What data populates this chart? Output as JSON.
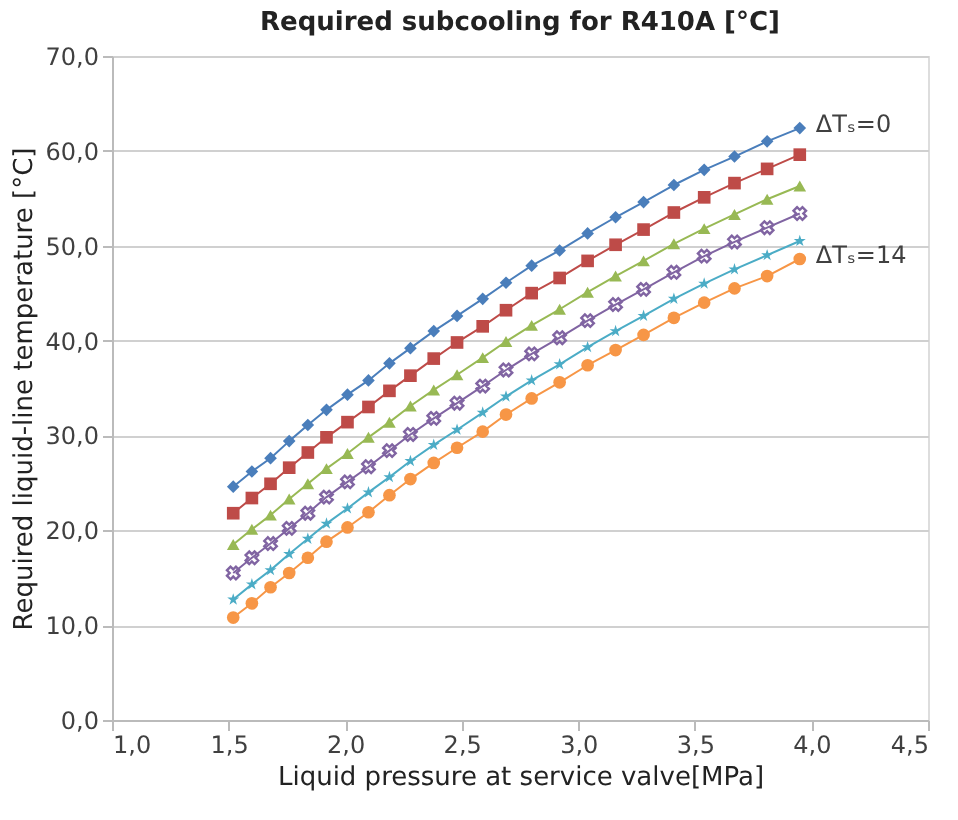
{
  "chart_data": {
    "type": "line",
    "title": "Required subcooling for R410A [°C]",
    "xlabel": "Liquid pressure at service valve[MPa]",
    "ylabel": "Required liquid-line temperature [°C]",
    "x": [
      1.52,
      1.6,
      1.68,
      1.76,
      1.84,
      1.92,
      2.01,
      2.1,
      2.19,
      2.28,
      2.38,
      2.48,
      2.59,
      2.69,
      2.8,
      2.92,
      3.04,
      3.16,
      3.28,
      3.41,
      3.54,
      3.67,
      3.81,
      3.95
    ],
    "series": [
      {
        "color": "#4a7ebb",
        "marker": "diamond",
        "values": [
          24.6,
          26.2,
          27.6,
          29.4,
          31.1,
          32.7,
          34.3,
          35.8,
          37.6,
          39.2,
          41.0,
          42.6,
          44.4,
          46.1,
          47.9,
          49.5,
          51.3,
          53.0,
          54.6,
          56.4,
          58.0,
          59.4,
          61.0,
          62.4
        ]
      },
      {
        "color": "#be4b48",
        "marker": "square",
        "values": [
          21.8,
          23.4,
          24.9,
          26.6,
          28.2,
          29.8,
          31.4,
          33.0,
          34.7,
          36.3,
          38.1,
          39.8,
          41.5,
          43.2,
          45.0,
          46.6,
          48.4,
          50.1,
          51.7,
          53.5,
          55.1,
          56.6,
          58.1,
          59.6
        ]
      },
      {
        "color": "#98b954",
        "marker": "triangle",
        "values": [
          18.5,
          20.1,
          21.6,
          23.3,
          24.9,
          26.5,
          28.1,
          29.8,
          31.4,
          33.1,
          34.8,
          36.4,
          38.2,
          39.9,
          41.6,
          43.3,
          45.1,
          46.8,
          48.4,
          50.2,
          51.8,
          53.3,
          54.9,
          56.3
        ]
      },
      {
        "color": "#8064a2",
        "marker": "cross",
        "values": [
          15.5,
          17.1,
          18.6,
          20.2,
          21.8,
          23.5,
          25.1,
          26.7,
          28.4,
          30.1,
          31.8,
          33.4,
          35.2,
          36.9,
          38.6,
          40.3,
          42.1,
          43.8,
          45.4,
          47.2,
          48.9,
          50.4,
          51.9,
          53.4
        ]
      },
      {
        "color": "#4bacc6",
        "marker": "star",
        "values": [
          12.7,
          14.3,
          15.8,
          17.5,
          19.1,
          20.7,
          22.3,
          24.0,
          25.6,
          27.3,
          29.0,
          30.6,
          32.4,
          34.1,
          35.8,
          37.5,
          39.3,
          41.0,
          42.6,
          44.4,
          46.0,
          47.5,
          49.0,
          50.5
        ]
      },
      {
        "color": "#f79646",
        "marker": "circle",
        "values": [
          10.8,
          12.3,
          14.0,
          15.5,
          17.1,
          18.8,
          20.3,
          21.9,
          23.7,
          25.4,
          27.1,
          28.7,
          30.4,
          32.2,
          33.9,
          35.6,
          37.4,
          39.0,
          40.6,
          42.4,
          44.0,
          45.5,
          46.8,
          48.6
        ]
      }
    ],
    "annotations": [
      {
        "text": "ΔTₛ=0",
        "x": 3.95,
        "y": 62.4
      },
      {
        "text": "ΔTₛ=14",
        "x": 3.95,
        "y": 48.6
      }
    ],
    "xlim": [
      1.0,
      4.5
    ],
    "xticks": [
      {
        "value": 1.0,
        "label": "1,0"
      },
      {
        "value": 1.5,
        "label": "1,5"
      },
      {
        "value": 2.0,
        "label": "2,0"
      },
      {
        "value": 2.5,
        "label": "2,5"
      },
      {
        "value": 3.0,
        "label": "3,0"
      },
      {
        "value": 3.5,
        "label": "3,5"
      },
      {
        "value": 4.0,
        "label": "4,0"
      },
      {
        "value": 4.5,
        "label": "4,5"
      }
    ],
    "ylim": [
      0,
      70
    ],
    "yticks": [
      {
        "value": 0,
        "label": "0,0"
      },
      {
        "value": 10,
        "label": "10,0"
      },
      {
        "value": 20,
        "label": "20,0"
      },
      {
        "value": 30,
        "label": "30,0"
      },
      {
        "value": 40,
        "label": "40,0"
      },
      {
        "value": 50,
        "label": "50,0"
      },
      {
        "value": 60,
        "label": "60,0"
      },
      {
        "value": 70,
        "label": "70,0"
      }
    ],
    "grid": "y"
  }
}
